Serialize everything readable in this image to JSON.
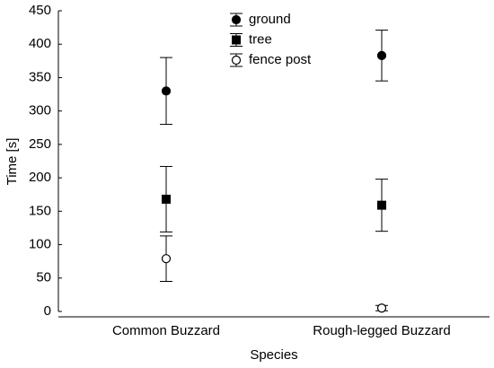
{
  "chart_data": {
    "type": "errorbar",
    "x_label": "Species",
    "y_label": "Time [s]",
    "categories": [
      "Common Buzzard",
      "Rough-legged Buzzard"
    ],
    "series": [
      {
        "name": "ground",
        "color": "#000000",
        "marker": "circle",
        "values": [
          330,
          383
        ],
        "errors": [
          50,
          38
        ]
      },
      {
        "name": "tree",
        "color": "#000000",
        "marker": "square",
        "values": [
          168,
          159
        ],
        "errors": [
          49,
          39
        ]
      },
      {
        "name": "fence post",
        "color": "#000000",
        "marker": "open-circle",
        "values": [
          79,
          5
        ],
        "errors": [
          34,
          4
        ]
      }
    ],
    "ylim": [
      0,
      450
    ],
    "yticks": [
      0,
      50,
      100,
      150,
      200,
      250,
      300,
      350,
      400,
      450
    ],
    "legend": "top-center"
  }
}
